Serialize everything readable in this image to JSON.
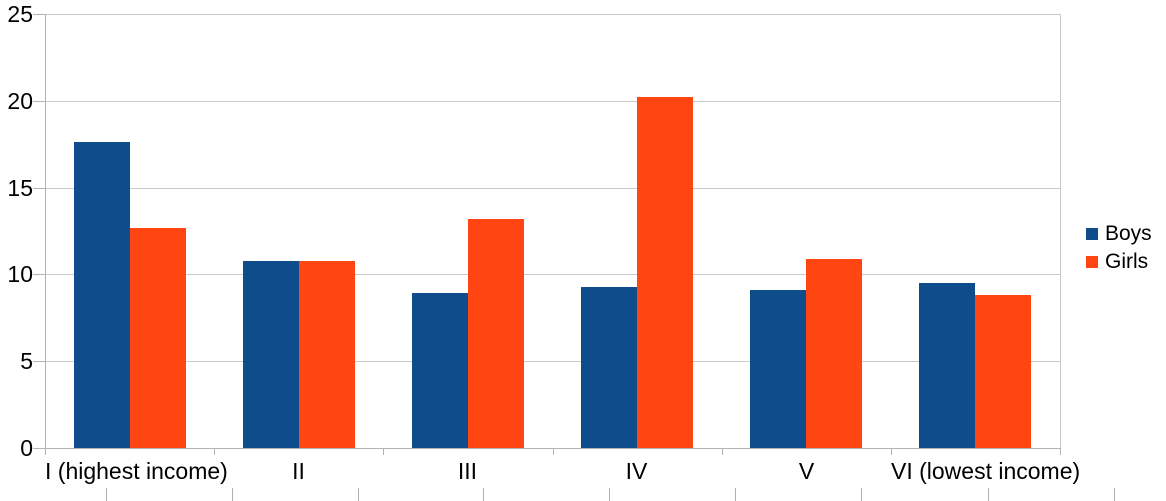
{
  "chart_data": {
    "type": "bar",
    "title": "",
    "categories": [
      "I (highest income)",
      "II",
      "III",
      "IV",
      "V",
      "VI (lowest income)"
    ],
    "series": [
      {
        "name": "Boys",
        "color": "#0f4c8c",
        "values": [
          17.6,
          10.8,
          8.9,
          9.3,
          9.1,
          9.5
        ]
      },
      {
        "name": "Girls",
        "color": "#ff4512",
        "values": [
          12.7,
          10.8,
          13.2,
          20.2,
          10.9,
          8.8
        ]
      }
    ],
    "xlabel": "",
    "ylabel": "",
    "ylim": [
      0,
      25
    ],
    "yticks": [
      "0",
      "5",
      "10",
      "15",
      "20",
      "25"
    ],
    "grid": "horizontal",
    "legend_position": "right"
  },
  "colors": {
    "background": "#ffffff",
    "gridline": "#c9c9c9",
    "axis": "#b3b3b3",
    "text": "#000000",
    "ruler_tick": "#b0b0b0"
  },
  "bottom_ruler_ticks_x": [
    106,
    232,
    358,
    483,
    609,
    735,
    861,
    988,
    1114
  ]
}
